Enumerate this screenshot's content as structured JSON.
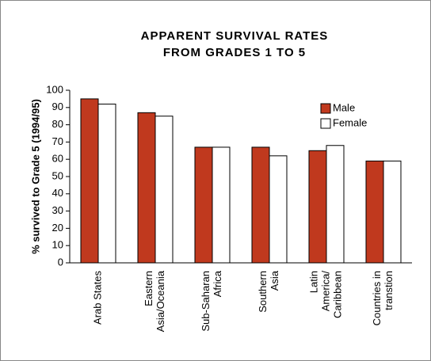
{
  "chart_data": {
    "type": "bar",
    "title": [
      "APPARENT SURVIVAL RATES",
      "FROM GRADES 1 TO 5"
    ],
    "y_label": "% survived to Grade 5 (1994/95)",
    "categories": [
      [
        "Arab States"
      ],
      [
        "Eastern",
        "Asia/Oceania"
      ],
      [
        "Sub-Saharan",
        "Africa"
      ],
      [
        "Southern",
        "Asia"
      ],
      [
        "Latin",
        "America/",
        "Caribbean"
      ],
      [
        "Countries in",
        "transtion"
      ]
    ],
    "series": [
      {
        "name": "Male",
        "color": "#c0391e",
        "values": [
          95,
          87,
          67,
          67,
          65,
          59
        ]
      },
      {
        "name": "Female",
        "color": "#ffffff",
        "values": [
          92,
          85,
          67,
          62,
          68,
          59
        ]
      }
    ],
    "ylim": [
      0,
      100
    ],
    "yticks": [
      0,
      10,
      20,
      30,
      40,
      50,
      60,
      70,
      80,
      90,
      100
    ],
    "legend": "upper right"
  }
}
